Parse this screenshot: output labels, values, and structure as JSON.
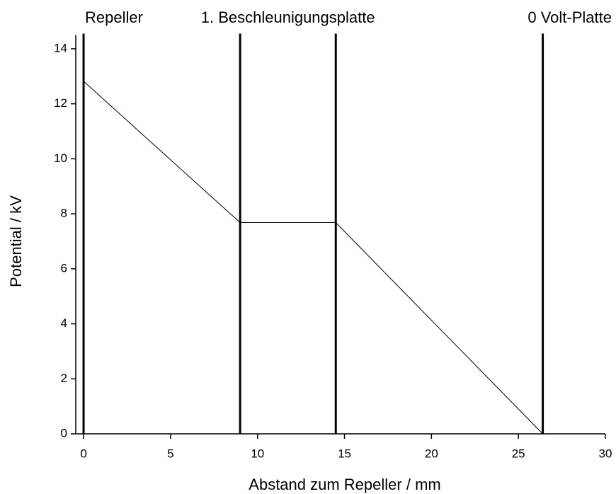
{
  "chart_data": {
    "type": "line",
    "x_label": "Abstand zum Repeller / mm",
    "y_label": "Potential / kV",
    "x": [
      0,
      9,
      14.5,
      26.4
    ],
    "series": [
      {
        "name": "Potential",
        "color": "#000000",
        "values": [
          12.82,
          7.68,
          7.68,
          0
        ]
      }
    ],
    "plates": [
      0,
      9,
      14.5,
      26.4
    ],
    "plate_color": "#000000",
    "annotations": [
      "Repeller",
      "1. Beschleunigungsplatte",
      "0 Volt-Platte"
    ],
    "xlim": [
      -0.45,
      30
    ],
    "xticks": [
      0,
      5,
      10,
      15,
      20,
      25,
      30
    ],
    "ylim": [
      0,
      14.5
    ],
    "yticks": [
      0,
      2,
      4,
      6,
      8,
      10,
      12,
      14
    ],
    "grid": false
  }
}
